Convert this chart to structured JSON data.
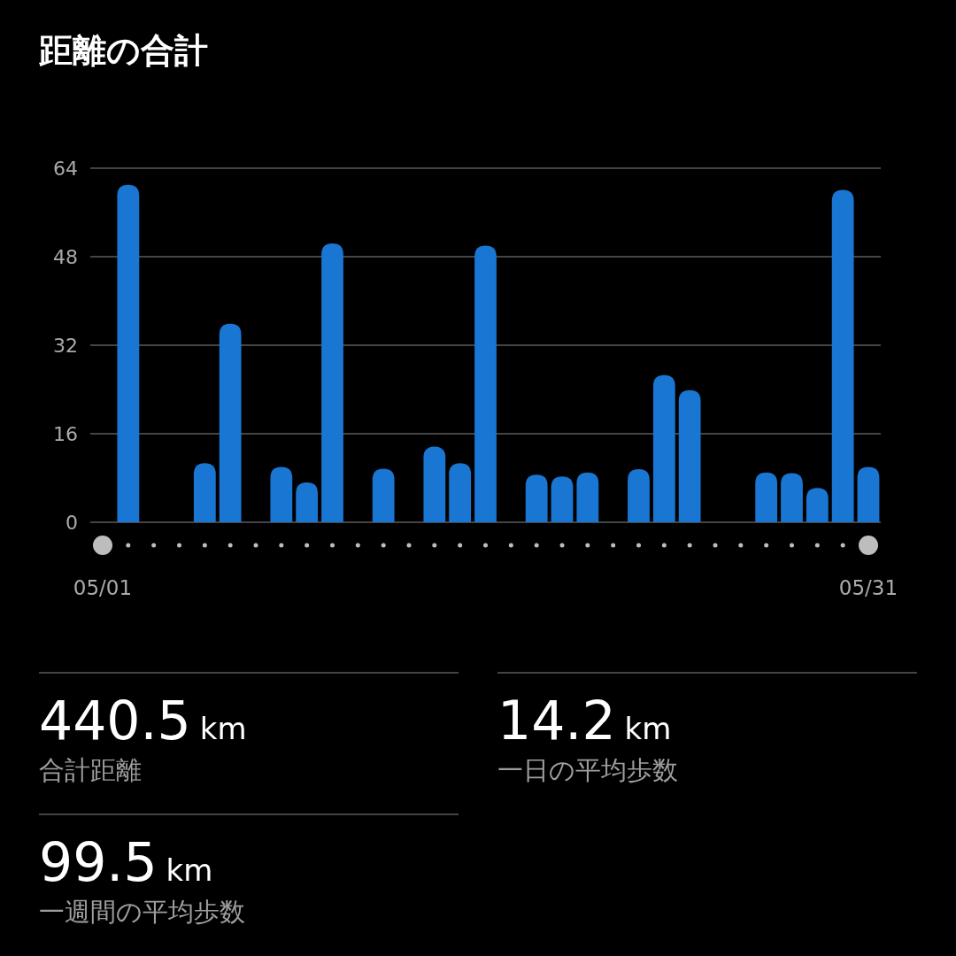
{
  "chart_data": {
    "type": "bar",
    "title": "距離の合計",
    "categories": [
      "05/01",
      null,
      null,
      null,
      null,
      null,
      null,
      null,
      null,
      null,
      null,
      null,
      null,
      null,
      null,
      null,
      null,
      null,
      null,
      null,
      null,
      null,
      null,
      null,
      null,
      null,
      null,
      null,
      null,
      null,
      "05/31"
    ],
    "values": [
      null,
      61.0,
      null,
      null,
      10.7,
      35.9,
      null,
      10.0,
      7.2,
      50.4,
      null,
      9.7,
      null,
      13.7,
      10.7,
      50.0,
      null,
      8.6,
      8.3,
      9.0,
      null,
      9.6,
      26.6,
      23.9,
      null,
      null,
      9.0,
      8.9,
      6.2,
      60.1,
      10.0
    ],
    "color": "#1976d2",
    "ylim": [
      0,
      64
    ],
    "yticks": [
      0,
      16,
      32,
      48,
      64
    ],
    "grid": "y",
    "annotations": [
      "440.5",
      "km",
      "合計距離",
      "14.2",
      "km",
      "一日の平均歩数",
      "99.5",
      "km",
      "一週間の平均歩数"
    ]
  }
}
